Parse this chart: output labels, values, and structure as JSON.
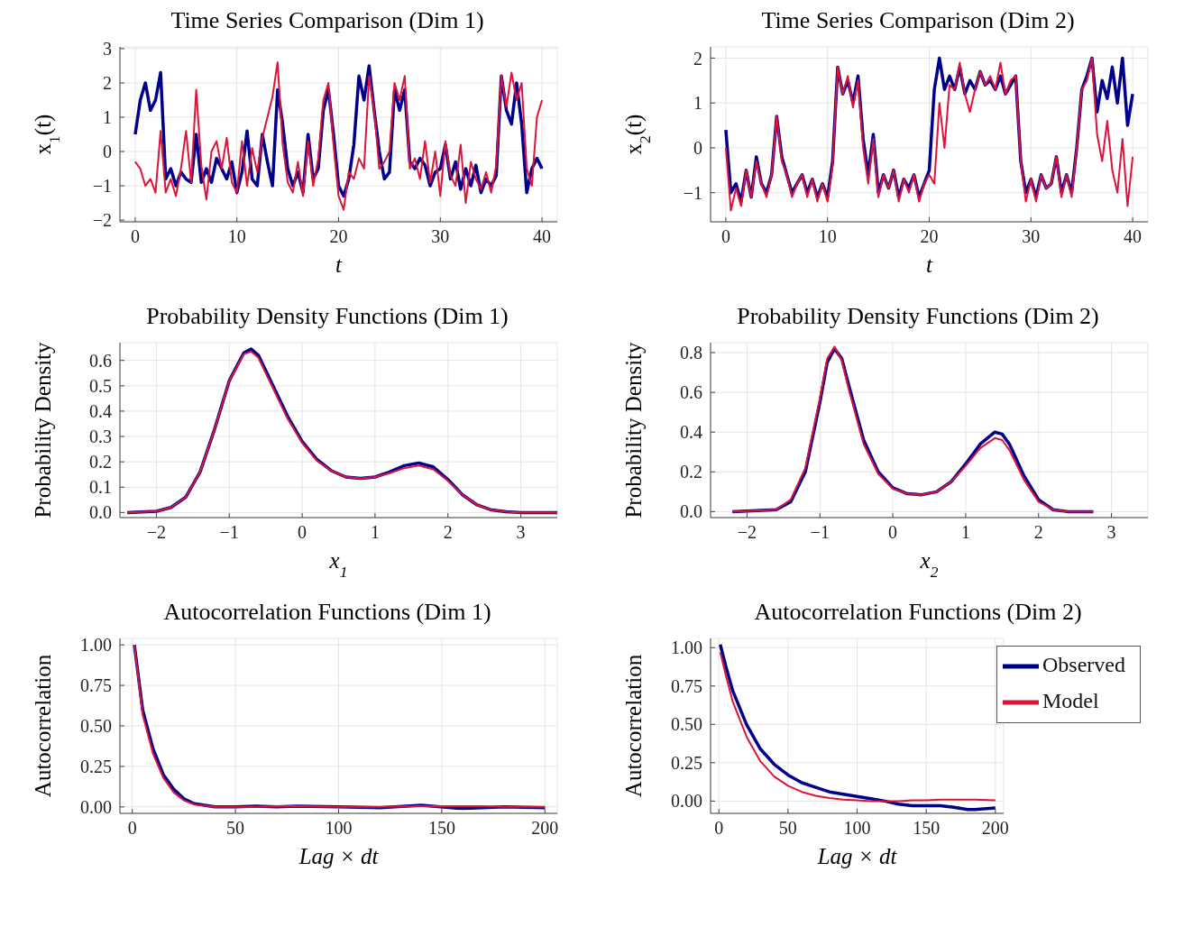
{
  "chart_data": [
    {
      "type": "line",
      "title": "Time Series Comparison (Dim 1)",
      "xlabel": "t",
      "ylabel": "x$_{1}$(t)",
      "xlim": [
        -1.5,
        41.5
      ],
      "xticks": [
        0,
        10,
        20,
        30,
        40
      ],
      "ylim": [
        -2.05,
        3.05
      ],
      "yticks": [
        -2,
        -1,
        0,
        1,
        2,
        3
      ],
      "grid": true,
      "x": [
        0,
        0.5,
        1,
        1.5,
        2,
        2.5,
        3,
        3.5,
        4,
        4.5,
        5,
        5.5,
        6,
        6.5,
        7,
        7.5,
        8,
        8.5,
        9,
        9.5,
        10,
        10.5,
        11,
        11.5,
        12,
        12.5,
        13,
        13.5,
        14,
        14.5,
        15,
        15.5,
        16,
        16.5,
        17,
        17.5,
        18,
        18.5,
        19,
        19.5,
        20,
        20.5,
        21,
        21.5,
        22,
        22.5,
        23,
        23.5,
        24,
        24.5,
        25,
        25.5,
        26,
        26.5,
        27,
        27.5,
        28,
        28.5,
        29,
        29.5,
        30,
        30.5,
        31,
        31.5,
        32,
        32.5,
        33,
        33.5,
        34,
        34.5,
        35,
        35.5,
        36,
        36.5,
        37,
        37.5,
        38,
        38.5,
        39,
        39.5,
        40
      ],
      "series": [
        {
          "color": "#00008b",
          "values": [
            0.5,
            1.5,
            2.0,
            1.2,
            1.5,
            2.3,
            -0.8,
            -0.5,
            -1.0,
            -0.6,
            -0.8,
            -0.9,
            0.5,
            -0.9,
            -0.5,
            -0.9,
            -0.2,
            -0.5,
            -0.8,
            -0.3,
            -1.2,
            -0.6,
            0.6,
            -0.8,
            -1.0,
            0.5,
            -0.3,
            -1.0,
            1.8,
            0.8,
            -0.5,
            -1.0,
            -0.6,
            -1.2,
            0.5,
            -0.8,
            -0.5,
            1.2,
            1.8,
            0.5,
            -1.0,
            -1.3,
            -0.8,
            0.2,
            2.2,
            1.5,
            2.5,
            1.2,
            0.0,
            -0.8,
            -0.6,
            1.8,
            1.2,
            1.8,
            -0.3,
            -0.5,
            -0.2,
            -0.4,
            -1.0,
            -0.6,
            -0.5,
            0.2,
            -0.8,
            -0.3,
            -1.1,
            -0.5,
            -1.0,
            -0.4,
            -1.2,
            -0.8,
            -1.0,
            -0.7,
            2.2,
            1.2,
            0.8,
            2.0,
            0.8,
            -1.2,
            -0.5,
            -0.2,
            -0.5
          ]
        },
        {
          "color": "#dc143c",
          "values": [
            -0.3,
            -0.5,
            -1.0,
            -0.8,
            -1.2,
            0.6,
            -1.2,
            -0.8,
            -1.3,
            -0.5,
            0.6,
            -0.9,
            1.8,
            -0.4,
            -1.4,
            0.0,
            0.3,
            -0.5,
            0.4,
            -0.9,
            -1.2,
            0.3,
            -1.0,
            0.1,
            -0.6,
            0.4,
            1.0,
            1.6,
            2.6,
            0.2,
            -0.9,
            -1.2,
            -0.3,
            -1.3,
            0.3,
            -1.0,
            -0.2,
            1.5,
            2.0,
            0.2,
            -1.3,
            -1.7,
            -0.6,
            -0.8,
            -0.2,
            -0.5,
            2.2,
            1.2,
            -0.5,
            -0.3,
            0.0,
            2.0,
            1.5,
            2.2,
            -0.5,
            -0.2,
            -0.8,
            0.3,
            -0.9,
            0.0,
            -1.3,
            0.3,
            -0.7,
            -1.0,
            0.2,
            -1.5,
            -0.3,
            -0.8,
            -1.1,
            -0.6,
            -1.2,
            -0.4,
            2.2,
            1.3,
            2.3,
            1.5,
            2.0,
            -0.5,
            -1.0,
            1.0,
            1.5
          ]
        }
      ]
    },
    {
      "type": "line",
      "title": "Time Series Comparison (Dim 2)",
      "xlabel": "t",
      "ylabel": "x$_{2}$(t)",
      "xlim": [
        -1.5,
        41.5
      ],
      "xticks": [
        0,
        10,
        20,
        30,
        40
      ],
      "ylim": [
        -1.65,
        2.25
      ],
      "yticks": [
        -1,
        0,
        1,
        2
      ],
      "grid": true,
      "x": [
        0,
        0.5,
        1,
        1.5,
        2,
        2.5,
        3,
        3.5,
        4,
        4.5,
        5,
        5.5,
        6,
        6.5,
        7,
        7.5,
        8,
        8.5,
        9,
        9.5,
        10,
        10.5,
        11,
        11.5,
        12,
        12.5,
        13,
        13.5,
        14,
        14.5,
        15,
        15.5,
        16,
        16.5,
        17,
        17.5,
        18,
        18.5,
        19,
        19.5,
        20,
        20.5,
        21,
        21.5,
        22,
        22.5,
        23,
        23.5,
        24,
        24.5,
        25,
        25.5,
        26,
        26.5,
        27,
        27.5,
        28,
        28.5,
        29,
        29.5,
        30,
        30.5,
        31,
        31.5,
        32,
        32.5,
        33,
        33.5,
        34,
        34.5,
        35,
        35.5,
        36,
        36.5,
        37,
        37.5,
        38,
        38.5,
        39,
        39.5,
        40
      ],
      "series": [
        {
          "color": "#00008b",
          "values": [
            0.4,
            -1.0,
            -0.8,
            -1.2,
            -0.5,
            -1.1,
            -0.2,
            -0.8,
            -1.0,
            -0.6,
            0.7,
            -0.2,
            -0.6,
            -1.0,
            -0.8,
            -0.6,
            -1.0,
            -0.7,
            -1.1,
            -0.8,
            -1.1,
            -0.3,
            1.8,
            1.2,
            1.5,
            1.0,
            1.6,
            0.2,
            -0.6,
            0.3,
            -1.0,
            -0.6,
            -0.9,
            -0.5,
            -1.1,
            -0.7,
            -0.9,
            -0.6,
            -1.1,
            -0.8,
            -0.5,
            1.3,
            2.0,
            1.3,
            1.6,
            1.3,
            1.8,
            1.2,
            1.5,
            1.3,
            1.7,
            1.4,
            1.5,
            1.3,
            1.6,
            1.2,
            1.4,
            1.6,
            -0.3,
            -1.0,
            -0.7,
            -1.1,
            -0.6,
            -0.9,
            -0.8,
            -0.2,
            -1.0,
            -0.6,
            -1.0,
            0.0,
            1.3,
            1.6,
            2.0,
            0.8,
            1.5,
            1.1,
            1.8,
            1.0,
            2.0,
            0.5,
            1.2
          ]
        },
        {
          "color": "#dc143c",
          "values": [
            0.0,
            -1.4,
            -0.9,
            -1.3,
            -0.5,
            -1.1,
            -0.3,
            -0.8,
            -1.1,
            -0.6,
            0.7,
            -0.3,
            -0.6,
            -1.1,
            -0.8,
            -0.6,
            -1.1,
            -0.7,
            -1.2,
            -0.8,
            -1.2,
            -0.4,
            1.8,
            1.2,
            1.6,
            0.9,
            1.5,
            0.0,
            -0.8,
            0.2,
            -1.1,
            -0.6,
            -0.9,
            -0.5,
            -1.2,
            -0.7,
            -1.0,
            -0.6,
            -1.2,
            -0.8,
            -0.6,
            -0.8,
            1.0,
            0.0,
            1.4,
            1.3,
            1.9,
            1.2,
            0.8,
            1.3,
            1.7,
            1.4,
            1.6,
            1.3,
            1.9,
            1.2,
            1.5,
            1.6,
            -0.3,
            -1.2,
            -0.7,
            -1.2,
            -0.6,
            -0.9,
            -0.8,
            -0.2,
            -1.1,
            -0.6,
            -1.1,
            0.0,
            1.3,
            1.5,
            2.0,
            0.3,
            -0.3,
            0.6,
            -0.5,
            -1.0,
            0.2,
            -1.3,
            -0.2
          ]
        }
      ]
    },
    {
      "type": "line",
      "title": "Probability Density Functions (Dim 1)",
      "xlabel": "x$_{1}$",
      "ylabel": "Probability Density",
      "xlim": [
        -2.5,
        3.5
      ],
      "xticks": [
        -2,
        -1,
        0,
        1,
        2,
        3
      ],
      "ylim": [
        -0.02,
        0.67
      ],
      "yticks": [
        {
          "value": 0,
          "label": "0.0"
        },
        0.1,
        0.2,
        0.3,
        0.4,
        0.5,
        0.6
      ],
      "grid": true,
      "x": [
        -2.4,
        -2.0,
        -1.8,
        -1.6,
        -1.4,
        -1.2,
        -1.0,
        -0.8,
        -0.7,
        -0.6,
        -0.4,
        -0.2,
        0,
        0.2,
        0.4,
        0.6,
        0.8,
        1.0,
        1.2,
        1.4,
        1.6,
        1.8,
        2.0,
        2.2,
        2.4,
        2.6,
        2.8,
        3.0,
        3.5
      ],
      "series": [
        {
          "color": "#00008b",
          "values": [
            0,
            0.005,
            0.02,
            0.06,
            0.16,
            0.33,
            0.52,
            0.63,
            0.645,
            0.62,
            0.5,
            0.38,
            0.28,
            0.21,
            0.165,
            0.14,
            0.135,
            0.14,
            0.16,
            0.185,
            0.195,
            0.18,
            0.13,
            0.07,
            0.03,
            0.01,
            0.003,
            0,
            0
          ]
        },
        {
          "color": "#dc143c",
          "values": [
            0,
            0.005,
            0.02,
            0.06,
            0.16,
            0.33,
            0.52,
            0.625,
            0.635,
            0.61,
            0.49,
            0.37,
            0.275,
            0.205,
            0.165,
            0.14,
            0.135,
            0.14,
            0.155,
            0.175,
            0.185,
            0.17,
            0.125,
            0.07,
            0.03,
            0.01,
            0.003,
            0,
            0
          ]
        }
      ]
    },
    {
      "type": "line",
      "title": "Probability Density Functions (Dim 2)",
      "xlabel": "x$_{2}$",
      "ylabel": "Probability Density",
      "xlim": [
        -2.5,
        3.5
      ],
      "xticks": [
        -2,
        -1,
        0,
        1,
        2,
        3
      ],
      "ylim": [
        -0.03,
        0.85
      ],
      "yticks": [
        {
          "value": 0,
          "label": "0.0"
        },
        0.2,
        0.4,
        0.6,
        0.8
      ],
      "grid": true,
      "x": [
        -2.2,
        -1.6,
        -1.4,
        -1.2,
        -1.0,
        -0.9,
        -0.8,
        -0.7,
        -0.6,
        -0.4,
        -0.2,
        0,
        0.2,
        0.4,
        0.6,
        0.8,
        1.0,
        1.2,
        1.4,
        1.5,
        1.6,
        1.8,
        2.0,
        2.2,
        2.4,
        2.75
      ],
      "series": [
        {
          "color": "#00008b",
          "values": [
            0,
            0.01,
            0.05,
            0.2,
            0.55,
            0.75,
            0.82,
            0.77,
            0.63,
            0.36,
            0.2,
            0.12,
            0.09,
            0.085,
            0.1,
            0.15,
            0.24,
            0.34,
            0.4,
            0.39,
            0.34,
            0.18,
            0.06,
            0.01,
            0,
            0
          ]
        },
        {
          "color": "#dc143c",
          "values": [
            0,
            0.01,
            0.06,
            0.22,
            0.57,
            0.77,
            0.83,
            0.76,
            0.61,
            0.34,
            0.19,
            0.115,
            0.09,
            0.085,
            0.1,
            0.15,
            0.23,
            0.32,
            0.37,
            0.36,
            0.31,
            0.16,
            0.05,
            0.01,
            0,
            0
          ]
        }
      ]
    },
    {
      "type": "line",
      "title": "Autocorrelation Functions (Dim 1)",
      "xlabel": "Lag × dt",
      "ylabel": "Autocorrelation",
      "xlim": [
        -6,
        206
      ],
      "xticks": [
        0,
        50,
        100,
        150,
        200
      ],
      "ylim": [
        -0.04,
        1.04
      ],
      "yticks": [
        {
          "value": 0,
          "label": "0.00"
        },
        0.25,
        {
          "value": 0.5,
          "label": "0.50"
        },
        0.75,
        {
          "value": 1,
          "label": "1.00"
        }
      ],
      "grid": true,
      "x": [
        1,
        5,
        10,
        15,
        20,
        25,
        30,
        40,
        50,
        60,
        70,
        80,
        100,
        120,
        140,
        160,
        170,
        180,
        200
      ],
      "series": [
        {
          "color": "#00008b",
          "values": [
            1,
            0.6,
            0.36,
            0.2,
            0.11,
            0.05,
            0.02,
            0.0,
            0.0,
            0.005,
            0,
            0.005,
            0,
            -0.005,
            0.01,
            -0.01,
            -0.005,
            0,
            -0.005
          ]
        },
        {
          "color": "#dc143c",
          "values": [
            1,
            0.57,
            0.33,
            0.18,
            0.09,
            0.04,
            0.015,
            0,
            0,
            0,
            0.005,
            0.005,
            0,
            0,
            0.005,
            0.005,
            0.005,
            0,
            0
          ]
        }
      ]
    },
    {
      "type": "line",
      "title": "Autocorrelation Functions (Dim 2)",
      "xlabel": "Lag × dt",
      "ylabel": "Autocorrelation",
      "xlim": [
        -6,
        206
      ],
      "xticks": [
        0,
        50,
        100,
        150,
        200
      ],
      "ylim": [
        -0.08,
        1.06
      ],
      "yticks": [
        {
          "value": 0,
          "label": "0.00"
        },
        0.25,
        {
          "value": 0.5,
          "label": "0.50"
        },
        0.75,
        {
          "value": 1,
          "label": "1.00"
        }
      ],
      "grid": true,
      "legend": "top right",
      "x": [
        1,
        5,
        10,
        20,
        30,
        40,
        50,
        60,
        70,
        80,
        90,
        100,
        110,
        120,
        130,
        140,
        150,
        160,
        170,
        180,
        185,
        200
      ],
      "series": [
        {
          "name": "Observed",
          "color": "#00008b",
          "values": [
            1.02,
            0.88,
            0.72,
            0.5,
            0.34,
            0.24,
            0.17,
            0.12,
            0.09,
            0.06,
            0.045,
            0.03,
            0.015,
            0,
            -0.02,
            -0.03,
            -0.03,
            -0.03,
            -0.04,
            -0.055,
            -0.055,
            -0.045
          ]
        },
        {
          "name": "Model",
          "color": "#dc143c",
          "values": [
            0.97,
            0.82,
            0.65,
            0.42,
            0.26,
            0.16,
            0.1,
            0.06,
            0.035,
            0.02,
            0.01,
            0.005,
            0,
            0,
            0,
            0.005,
            0.005,
            0.01,
            0.01,
            0.01,
            0.01,
            0.005
          ]
        }
      ]
    }
  ]
}
